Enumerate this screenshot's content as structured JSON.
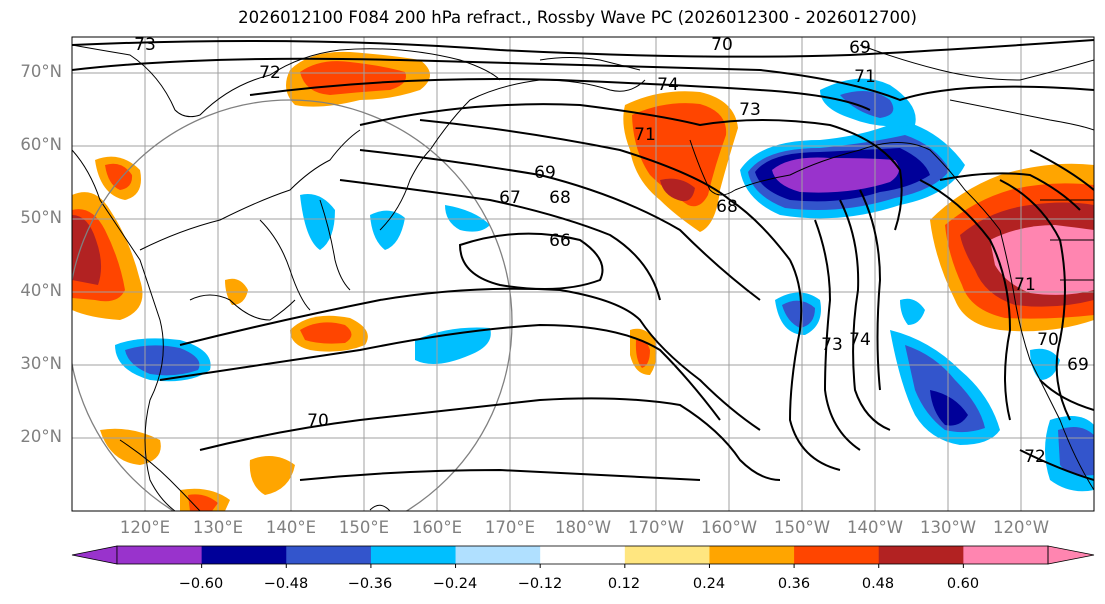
{
  "title": "2026012100 F084 200 hPa refract., Rossby Wave PC (2026012300 - 2026012700)",
  "axes": {
    "lat_labels": [
      "70°N",
      "60°N",
      "50°N",
      "40°N",
      "30°N",
      "20°N"
    ],
    "lon_labels": [
      "120°E",
      "130°E",
      "140°E",
      "150°E",
      "160°E",
      "170°E",
      "180°W",
      "170°W",
      "160°W",
      "150°W",
      "140°W",
      "130°W",
      "120°W"
    ]
  },
  "contour_labels": [
    "73",
    "72",
    "70",
    "69",
    "71",
    "74",
    "73",
    "71",
    "69",
    "68",
    "67",
    "68",
    "66",
    "70",
    "73",
    "74",
    "71",
    "70",
    "69",
    "72"
  ],
  "colorbar": {
    "ticks": [
      "−0.60",
      "−0.48",
      "−0.36",
      "−0.24",
      "−0.12",
      "0.12",
      "0.24",
      "0.36",
      "0.48",
      "0.60"
    ],
    "colors": [
      "#9933CC",
      "#000099",
      "#3355CC",
      "#00BFFF",
      "#B0E0FF",
      "#FFFFFF",
      "#FFE680",
      "#FFA500",
      "#FF4500",
      "#B22222",
      "#FF85B0",
      "#FF85B0"
    ]
  }
}
